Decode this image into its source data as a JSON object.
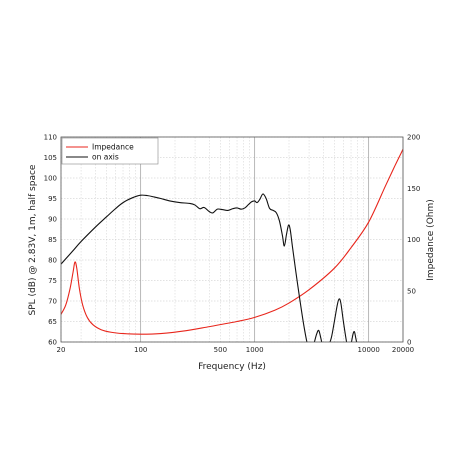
{
  "chart_data": {
    "type": "line",
    "xlabel": "Frequency (Hz)",
    "ylabel": "SPL (dB) @ 2.83V, 1m, half space",
    "y2label": "Impedance (Ohm)",
    "x_scale": "log",
    "xlim": [
      20,
      20000
    ],
    "ylim": [
      60,
      110
    ],
    "y2lim": [
      0,
      200
    ],
    "grid": true,
    "legend_position": "top-left",
    "x_tick_labels": [
      {
        "value": 20,
        "label": "20"
      },
      {
        "value": 100,
        "label": "100"
      },
      {
        "value": 500,
        "label": "500"
      },
      {
        "value": 1000,
        "label": "1000"
      },
      {
        "value": 10000,
        "label": "10000"
      },
      {
        "value": 20000,
        "label": "20000"
      }
    ],
    "y_ticks": [
      60,
      65,
      70,
      75,
      80,
      85,
      90,
      95,
      100,
      105,
      110
    ],
    "y2_ticks": [
      0,
      50,
      100,
      150,
      200
    ],
    "series": [
      {
        "name": "Impedance",
        "axis": "right",
        "color": "#e8261c",
        "points": [
          [
            20,
            27
          ],
          [
            22,
            36
          ],
          [
            24,
            52
          ],
          [
            25.5,
            68
          ],
          [
            26.5,
            78
          ],
          [
            27.5,
            72
          ],
          [
            29,
            52
          ],
          [
            31,
            36
          ],
          [
            34,
            24
          ],
          [
            38,
            17
          ],
          [
            45,
            12
          ],
          [
            55,
            9.5
          ],
          [
            70,
            8.2
          ],
          [
            100,
            7.6
          ],
          [
            150,
            8.2
          ],
          [
            250,
            11
          ],
          [
            400,
            15
          ],
          [
            700,
            20
          ],
          [
            1000,
            24
          ],
          [
            1500,
            31
          ],
          [
            2000,
            38
          ],
          [
            3000,
            51
          ],
          [
            5000,
            72
          ],
          [
            7000,
            92
          ],
          [
            10000,
            117
          ],
          [
            14000,
            152
          ],
          [
            17000,
            172
          ],
          [
            20000,
            188
          ]
        ]
      },
      {
        "name": "on axis",
        "axis": "left",
        "color": "#111111",
        "points": [
          [
            20,
            79
          ],
          [
            25,
            82
          ],
          [
            30,
            84.5
          ],
          [
            40,
            88
          ],
          [
            50,
            90.5
          ],
          [
            60,
            92.5
          ],
          [
            70,
            94
          ],
          [
            85,
            95.2
          ],
          [
            100,
            95.8
          ],
          [
            115,
            95.7
          ],
          [
            130,
            95.4
          ],
          [
            150,
            95
          ],
          [
            180,
            94.4
          ],
          [
            220,
            94
          ],
          [
            270,
            93.8
          ],
          [
            300,
            93.4
          ],
          [
            330,
            92.5
          ],
          [
            360,
            92.8
          ],
          [
            400,
            91.8
          ],
          [
            430,
            91.5
          ],
          [
            470,
            92.4
          ],
          [
            520,
            92.3
          ],
          [
            580,
            92.1
          ],
          [
            640,
            92.5
          ],
          [
            700,
            92.7
          ],
          [
            760,
            92.4
          ],
          [
            820,
            92.7
          ],
          [
            880,
            93.5
          ],
          [
            940,
            94.2
          ],
          [
            1000,
            94.4
          ],
          [
            1050,
            94
          ],
          [
            1110,
            94.8
          ],
          [
            1180,
            96.1
          ],
          [
            1260,
            95
          ],
          [
            1350,
            92.6
          ],
          [
            1450,
            92.1
          ],
          [
            1550,
            91.5
          ],
          [
            1650,
            89.5
          ],
          [
            1750,
            86
          ],
          [
            1820,
            83.4
          ],
          [
            1900,
            86.2
          ],
          [
            1980,
            88.5
          ],
          [
            2050,
            87.4
          ],
          [
            2150,
            83
          ],
          [
            2300,
            77
          ],
          [
            2500,
            70
          ],
          [
            2700,
            64
          ],
          [
            2900,
            59.5
          ],
          [
            3100,
            57.5
          ],
          [
            3300,
            59.5
          ],
          [
            3500,
            62
          ],
          [
            3650,
            62.8
          ],
          [
            3800,
            61
          ],
          [
            3950,
            59
          ],
          [
            4100,
            58.5
          ],
          [
            4400,
            59
          ],
          [
            4700,
            61
          ],
          [
            5000,
            65
          ],
          [
            5300,
            69
          ],
          [
            5500,
            70.5
          ],
          [
            5700,
            69.5
          ],
          [
            6000,
            65
          ],
          [
            6400,
            60
          ],
          [
            6700,
            58
          ],
          [
            7000,
            59.5
          ],
          [
            7300,
            62
          ],
          [
            7500,
            62.5
          ],
          [
            7700,
            61
          ],
          [
            7900,
            59.5
          ],
          [
            8100,
            58
          ]
        ]
      }
    ]
  }
}
